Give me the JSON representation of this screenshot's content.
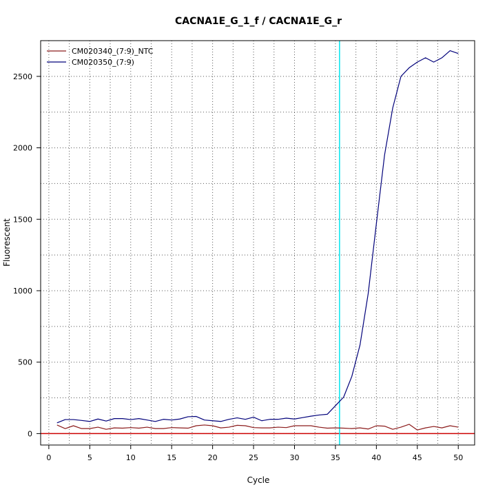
{
  "chart_data": {
    "type": "line",
    "title": "CACNA1E_G_1_f / CACNA1E_G_r",
    "xlabel": "Cycle",
    "ylabel": "Fluorescent",
    "xlim": [
      -1,
      52
    ],
    "ylim": [
      -80,
      2750
    ],
    "x_ticks": [
      0,
      5,
      10,
      15,
      20,
      25,
      30,
      35,
      40,
      45,
      50
    ],
    "y_ticks": [
      0,
      500,
      1000,
      1500,
      2000,
      2500
    ],
    "grid": true,
    "legend_position": "top-left",
    "threshold": {
      "type": "horizontal",
      "value": 0,
      "color": "#cc0000"
    },
    "cycle_marker": {
      "type": "vertical",
      "value": 35.5,
      "color": "#00e5ee"
    },
    "series": [
      {
        "name": "CM020340_(7:9)_NTC",
        "color": "#8b1a1a",
        "x": [
          1,
          2,
          3,
          4,
          5,
          6,
          7,
          8,
          9,
          10,
          11,
          12,
          13,
          14,
          15,
          16,
          17,
          18,
          19,
          20,
          21,
          22,
          23,
          24,
          25,
          26,
          27,
          28,
          29,
          30,
          31,
          32,
          33,
          34,
          35,
          36,
          37,
          38,
          39,
          40,
          41,
          42,
          43,
          44,
          45,
          46,
          47,
          48,
          49,
          50
        ],
        "values": [
          60,
          35,
          55,
          35,
          35,
          45,
          30,
          40,
          38,
          42,
          38,
          45,
          35,
          35,
          42,
          40,
          38,
          55,
          60,
          55,
          40,
          45,
          58,
          55,
          42,
          40,
          40,
          45,
          42,
          55,
          55,
          55,
          45,
          38,
          40,
          38,
          35,
          40,
          32,
          55,
          52,
          30,
          45,
          65,
          25,
          40,
          50,
          40,
          55,
          45
        ]
      },
      {
        "name": "CM020350_(7:9)",
        "color": "#00007a",
        "x": [
          1,
          2,
          3,
          4,
          5,
          6,
          7,
          8,
          9,
          10,
          11,
          12,
          13,
          14,
          15,
          16,
          17,
          18,
          19,
          20,
          21,
          22,
          23,
          24,
          25,
          26,
          27,
          28,
          29,
          30,
          31,
          32,
          33,
          34,
          35,
          36,
          37,
          38,
          39,
          40,
          41,
          42,
          43,
          44,
          45,
          46,
          47,
          48,
          49,
          50
        ],
        "values": [
          75,
          98,
          98,
          92,
          85,
          102,
          88,
          105,
          105,
          98,
          105,
          95,
          85,
          100,
          95,
          102,
          118,
          120,
          95,
          90,
          85,
          100,
          110,
          100,
          115,
          90,
          100,
          100,
          108,
          102,
          112,
          122,
          130,
          135,
          195,
          255,
          400,
          620,
          980,
          1470,
          1950,
          2280,
          2500,
          2560,
          2600,
          2630,
          2600,
          2630,
          2680,
          2660
        ]
      }
    ]
  }
}
